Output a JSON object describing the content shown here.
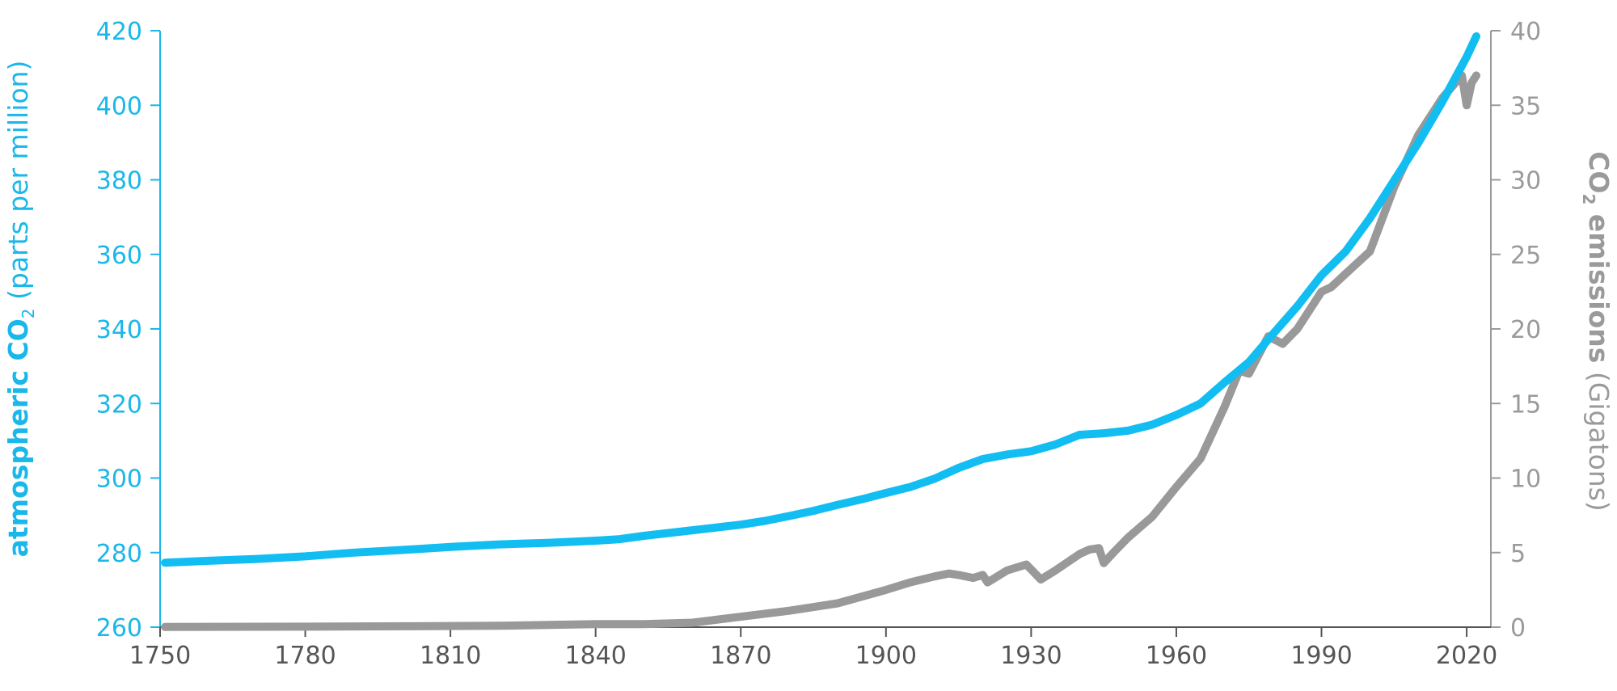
{
  "chart_data": {
    "type": "line",
    "xlim": [
      1750,
      2025
    ],
    "x_ticks": [
      "1750",
      "1780",
      "1810",
      "1840",
      "1870",
      "1900",
      "1930",
      "1960",
      "1990",
      "2020"
    ],
    "y_left": {
      "label_bold": "atmospheric CO",
      "label_sub": "2",
      "label_rest": " (parts per million)",
      "lim": [
        260,
        420
      ],
      "ticks": [
        "260",
        "280",
        "300",
        "320",
        "340",
        "360",
        "380",
        "400",
        "420"
      ],
      "color": "#12bdf2"
    },
    "y_right": {
      "label_bold": "CO",
      "label_sub": "2",
      "label_bold2": " emissions",
      "label_rest": " (Gigatons)",
      "lim": [
        0,
        40
      ],
      "ticks": [
        "0",
        "5",
        "10",
        "15",
        "20",
        "25",
        "30",
        "35",
        "40"
      ],
      "color": "#999999"
    },
    "series": [
      {
        "axis": "left",
        "color": "#12bdf2",
        "x": [
          1751,
          1760,
          1770,
          1780,
          1790,
          1800,
          1810,
          1820,
          1830,
          1840,
          1845,
          1850,
          1860,
          1870,
          1875,
          1880,
          1885,
          1890,
          1895,
          1900,
          1905,
          1910,
          1915,
          1920,
          1925,
          1930,
          1935,
          1940,
          1945,
          1950,
          1955,
          1960,
          1965,
          1970,
          1975,
          1980,
          1985,
          1990,
          1995,
          2000,
          2005,
          2010,
          2015,
          2020,
          2022
        ],
        "values": [
          277.3,
          277.8,
          278.3,
          279.0,
          280.0,
          280.7,
          281.5,
          282.2,
          282.6,
          283.2,
          283.6,
          284.5,
          286.0,
          287.5,
          288.5,
          289.8,
          291.2,
          292.8,
          294.3,
          296.0,
          297.6,
          299.8,
          302.7,
          305.1,
          306.3,
          307.2,
          309.0,
          311.6,
          312.0,
          312.7,
          314.3,
          316.9,
          320.0,
          325.7,
          331.1,
          338.7,
          346.1,
          354.4,
          360.8,
          369.7,
          379.8,
          389.9,
          401.0,
          413.0,
          418.5
        ]
      },
      {
        "axis": "right",
        "color": "#999999",
        "x": [
          1751,
          1780,
          1800,
          1820,
          1840,
          1850,
          1860,
          1870,
          1880,
          1890,
          1900,
          1905,
          1910,
          1913,
          1915,
          1918,
          1920,
          1921,
          1925,
          1929,
          1932,
          1935,
          1940,
          1942,
          1944,
          1945,
          1947,
          1950,
          1955,
          1960,
          1965,
          1970,
          1973,
          1975,
          1979,
          1982,
          1985,
          1990,
          1992,
          1995,
          2000,
          2005,
          2010,
          2015,
          2019,
          2020,
          2021,
          2022
        ],
        "values": [
          0.01,
          0.03,
          0.06,
          0.09,
          0.2,
          0.2,
          0.3,
          0.7,
          1.1,
          1.6,
          2.5,
          3.0,
          3.4,
          3.6,
          3.5,
          3.3,
          3.5,
          3.0,
          3.8,
          4.2,
          3.2,
          3.8,
          4.9,
          5.2,
          5.3,
          4.3,
          5.0,
          6.0,
          7.4,
          9.4,
          11.3,
          14.8,
          17.2,
          17.0,
          19.5,
          19.0,
          20.0,
          22.5,
          22.8,
          23.7,
          25.2,
          29.5,
          33.0,
          35.5,
          37.0,
          35.0,
          36.5,
          37.0
        ]
      }
    ]
  }
}
